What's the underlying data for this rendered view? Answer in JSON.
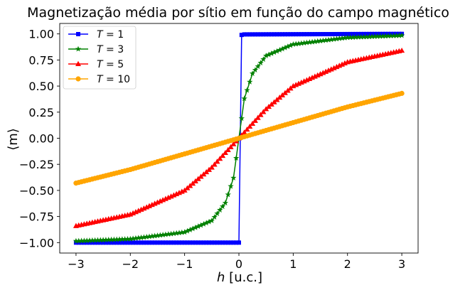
{
  "chart_data": {
    "type": "line",
    "title": "Magnetização média por sítio em função do campo magnético",
    "xlabel": "h [u.c.]",
    "ylabel": "⟨m⟩",
    "xlim": [
      -3.3,
      3.3
    ],
    "ylim": [
      -1.1,
      1.1
    ],
    "x_ticks": [
      -3,
      -2,
      -1,
      0,
      1,
      2,
      3
    ],
    "x_tick_labels": [
      "−3",
      "−2",
      "−1",
      "0",
      "1",
      "2",
      "3"
    ],
    "y_ticks": [
      1.0,
      0.75,
      0.5,
      0.25,
      0.0,
      -0.25,
      -0.5,
      -0.75,
      -1.0
    ],
    "y_tick_labels": [
      "1.00",
      "0.75",
      "0.50",
      "0.25",
      "0.00",
      "−0.25",
      "−0.50",
      "−0.75",
      "−1.00"
    ],
    "grid": false,
    "legend_position": "top-left",
    "x": {
      "start": -3.0,
      "stop": 3.0,
      "count": 121
    },
    "series": [
      {
        "name": "T = 1",
        "color": "#0000ff",
        "marker": "square",
        "points": [
          [
            -3.0,
            -1.0
          ],
          [
            0.0,
            -1.0
          ],
          [
            0.05,
            0.99
          ],
          [
            0.1,
            0.995
          ],
          [
            3.0,
            1.0
          ]
        ]
      },
      {
        "name": "T = 3",
        "color": "#008000",
        "marker": "star",
        "points": [
          [
            -3.0,
            -0.985
          ],
          [
            -2.0,
            -0.965
          ],
          [
            -1.0,
            -0.9
          ],
          [
            -0.5,
            -0.79
          ],
          [
            -0.25,
            -0.62
          ],
          [
            -0.1,
            -0.38
          ],
          [
            0.0,
            0.0
          ],
          [
            0.1,
            0.38
          ],
          [
            0.25,
            0.62
          ],
          [
            0.5,
            0.79
          ],
          [
            1.0,
            0.9
          ],
          [
            2.0,
            0.965
          ],
          [
            3.0,
            0.985
          ]
        ]
      },
      {
        "name": "T = 5",
        "color": "#ff0000",
        "marker": "triangle",
        "points": [
          [
            -3.0,
            -0.84
          ],
          [
            -2.0,
            -0.73
          ],
          [
            -1.0,
            -0.5
          ],
          [
            -0.5,
            -0.28
          ],
          [
            0.0,
            0.0
          ],
          [
            0.5,
            0.28
          ],
          [
            1.0,
            0.5
          ],
          [
            2.0,
            0.73
          ],
          [
            3.0,
            0.84
          ]
        ]
      },
      {
        "name": "T = 10",
        "color": "#ffa500",
        "marker": "circle",
        "points": [
          [
            -3.0,
            -0.43
          ],
          [
            -2.0,
            -0.3
          ],
          [
            -1.0,
            -0.15
          ],
          [
            0.0,
            0.0
          ],
          [
            1.0,
            0.15
          ],
          [
            2.0,
            0.3
          ],
          [
            3.0,
            0.43
          ]
        ]
      }
    ]
  }
}
